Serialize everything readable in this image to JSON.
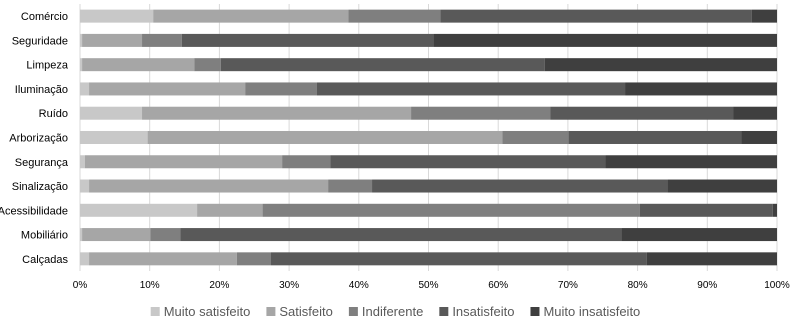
{
  "chart_data": {
    "type": "bar",
    "orientation": "horizontal",
    "stacked": "percent",
    "categories": [
      "Comércio",
      "Seguridade",
      "Limpeza",
      "Iluminação",
      "Ruído",
      "Arborização",
      "Segurança",
      "Sinalização",
      "Acessibilidade",
      "Mobiliário",
      "Calçadas"
    ],
    "series": [
      {
        "name": "Muito satisfeito",
        "color": "#c8c8c8",
        "values": [
          10.5,
          0.3,
          0.3,
          1.3,
          8.9,
          9.7,
          0.7,
          1.3,
          16.8,
          0.3,
          1.3
        ]
      },
      {
        "name": "Satisfeito",
        "color": "#a6a6a6",
        "values": [
          28.0,
          8.6,
          16.1,
          22.4,
          38.6,
          50.9,
          28.3,
          34.3,
          9.4,
          9.8,
          21.2
        ]
      },
      {
        "name": "Indiferente",
        "color": "#7f7f7f",
        "values": [
          13.2,
          5.7,
          3.8,
          10.3,
          20.0,
          9.5,
          6.9,
          6.3,
          54.1,
          4.3,
          4.9
        ]
      },
      {
        "name": "Insatisfeito",
        "color": "#595959",
        "values": [
          44.7,
          36.1,
          46.5,
          44.2,
          26.2,
          24.8,
          39.5,
          42.4,
          19.1,
          63.3,
          53.9
        ]
      },
      {
        "name": "Muito insatisfeito",
        "color": "#3f3f3f",
        "values": [
          3.6,
          49.3,
          33.3,
          21.8,
          6.3,
          5.1,
          24.6,
          15.7,
          0.6,
          22.3,
          18.7
        ]
      }
    ],
    "xlim": [
      0,
      100
    ],
    "x_ticks": [
      "0%",
      "10%",
      "20%",
      "30%",
      "40%",
      "50%",
      "60%",
      "70%",
      "80%",
      "90%",
      "100%"
    ],
    "grid": true,
    "legend_position": "bottom"
  }
}
